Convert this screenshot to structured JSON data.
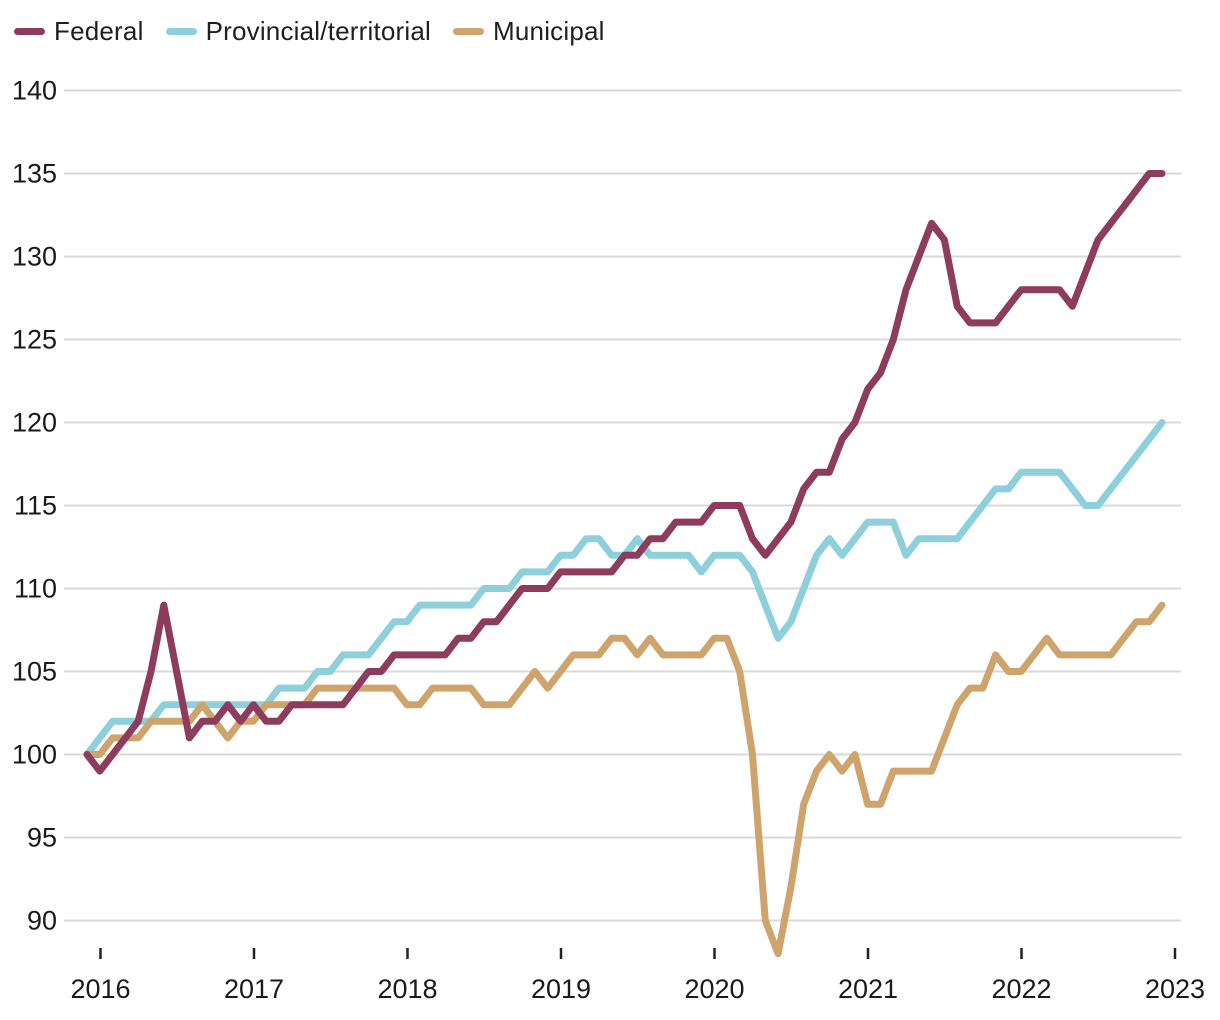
{
  "chart_data": {
    "type": "line",
    "title": "",
    "xlabel": "",
    "ylabel": "",
    "x_axis": {
      "tick_labels": [
        "2016",
        "2017",
        "2018",
        "2019",
        "2020",
        "2021",
        "2022",
        "2023"
      ],
      "frequency": "monthly",
      "first_point": "2015-12",
      "last_point": "2022-12"
    },
    "y_axis": {
      "ticks": [
        90,
        95,
        100,
        105,
        110,
        115,
        120,
        125,
        130,
        135,
        140
      ],
      "range": [
        88,
        141
      ],
      "grid": "horizontal"
    },
    "legend_position": "top-left",
    "series": [
      {
        "name": "Federal",
        "color": "#8e3c5e",
        "values": [
          100,
          99,
          100,
          101,
          102,
          105,
          109,
          105,
          101,
          102,
          102,
          103,
          102,
          103,
          102,
          102,
          103,
          103,
          103,
          103,
          103,
          104,
          105,
          105,
          106,
          106,
          106,
          106,
          106,
          107,
          107,
          108,
          108,
          109,
          110,
          110,
          110,
          111,
          111,
          111,
          111,
          111,
          112,
          112,
          113,
          113,
          114,
          114,
          114,
          115,
          115,
          115,
          113,
          112,
          113,
          114,
          116,
          117,
          117,
          119,
          120,
          122,
          123,
          125,
          128,
          130,
          132,
          131,
          127,
          126,
          126,
          126,
          127,
          128,
          128,
          128,
          128,
          127,
          129,
          131,
          132,
          133,
          134,
          135,
          135
        ]
      },
      {
        "name": "Provincial/territorial",
        "color": "#8dcfdb",
        "values": [
          100,
          101,
          102,
          102,
          102,
          102,
          103,
          103,
          103,
          103,
          103,
          103,
          103,
          103,
          103,
          104,
          104,
          104,
          105,
          105,
          106,
          106,
          106,
          107,
          108,
          108,
          109,
          109,
          109,
          109,
          109,
          110,
          110,
          110,
          111,
          111,
          111,
          112,
          112,
          113,
          113,
          112,
          112,
          113,
          112,
          112,
          112,
          112,
          111,
          112,
          112,
          112,
          111,
          109,
          107,
          108,
          110,
          112,
          113,
          112,
          113,
          114,
          114,
          114,
          112,
          113,
          113,
          113,
          113,
          114,
          115,
          116,
          116,
          117,
          117,
          117,
          117,
          116,
          115,
          115,
          116,
          117,
          118,
          119,
          120
        ]
      },
      {
        "name": "Municipal",
        "color": "#cfa46c",
        "values": [
          100,
          100,
          101,
          101,
          101,
          102,
          102,
          102,
          102,
          103,
          102,
          101,
          102,
          102,
          103,
          103,
          103,
          103,
          104,
          104,
          104,
          104,
          104,
          104,
          104,
          103,
          103,
          104,
          104,
          104,
          104,
          103,
          103,
          103,
          104,
          105,
          104,
          105,
          106,
          106,
          106,
          107,
          107,
          106,
          107,
          106,
          106,
          106,
          106,
          107,
          107,
          105,
          100,
          90,
          88,
          92,
          97,
          99,
          100,
          99,
          100,
          97,
          97,
          99,
          99,
          99,
          99,
          101,
          103,
          104,
          104,
          106,
          105,
          105,
          106,
          107,
          106,
          106,
          106,
          106,
          106,
          107,
          108,
          108,
          109
        ]
      }
    ],
    "style": {
      "gridline_color": "#d9d9d9",
      "tick_color": "#222222",
      "line_width": 7
    }
  }
}
